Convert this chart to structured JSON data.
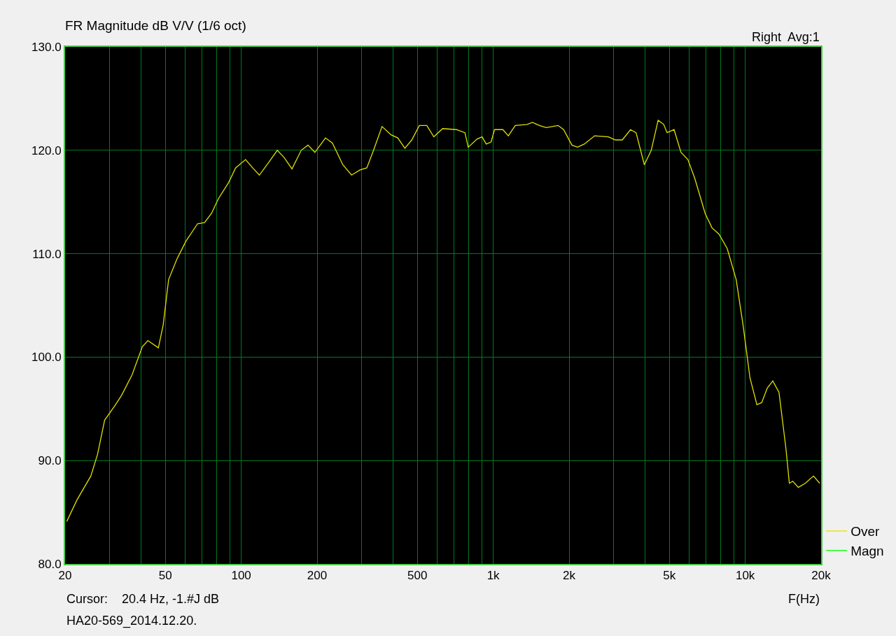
{
  "chart_data": {
    "type": "line",
    "title": "FR Magnitude dB V/V (1/6 oct)",
    "xlabel": "F(Hz)",
    "annotations": [
      "Right  Avg:1",
      "Cursor:    20.4 Hz, -1.#J dB",
      "HA20-569_2014.12.20."
    ],
    "x": [
      20.3,
      22.3,
      25.3,
      26.9,
      28.7,
      31.5,
      33.5,
      36.9,
      40.5,
      42.6,
      46.9,
      49.0,
      51.5,
      55.6,
      60.3,
      67.1,
      71.5,
      76.2,
      81.1,
      89.2,
      95.0,
      104,
      111,
      118,
      130,
      139,
      148,
      159,
      173,
      184,
      196,
      216,
      230,
      253,
      274,
      296,
      315,
      335,
      362,
      393,
      418,
      446,
      475,
      509,
      545,
      581,
      630,
      715,
      772,
      796,
      864,
      903,
      938,
      980,
      1012,
      1092,
      1148,
      1223,
      1361,
      1432,
      1525,
      1624,
      1808,
      1902,
      2052,
      2158,
      2298,
      2526,
      2866,
      3053,
      3251,
      3506,
      3688,
      3978,
      4236,
      4512,
      4746,
      4898,
      5218,
      5558,
      5920,
      6304,
      6931,
      7380,
      7860,
      8482,
      9206,
      9804,
      10442,
      11122,
      11624,
      12226,
      12860,
      13612,
      14498,
      14964,
      15444,
      16240,
      17298,
      18660,
      19748
    ],
    "series": [
      {
        "name": "Over",
        "color": "#e0e000",
        "values": [
          84.1,
          86.2,
          88.5,
          90.6,
          93.9,
          95.3,
          96.3,
          98.3,
          101.0,
          101.6,
          100.9,
          103.1,
          107.5,
          109.5,
          111.2,
          112.9,
          113.0,
          113.9,
          115.3,
          116.9,
          118.3,
          119.1,
          118.3,
          117.6,
          119.0,
          120.0,
          119.3,
          118.2,
          120.0,
          120.5,
          119.8,
          121.2,
          120.7,
          118.6,
          117.6,
          118.1,
          118.3,
          120.0,
          122.3,
          121.5,
          121.2,
          120.2,
          121.0,
          122.4,
          122.4,
          121.3,
          122.1,
          122.0,
          121.7,
          120.3,
          121.1,
          121.3,
          120.6,
          120.8,
          122.0,
          122.0,
          121.4,
          122.4,
          122.5,
          122.7,
          122.4,
          122.2,
          122.4,
          122.0,
          120.5,
          120.3,
          120.6,
          121.4,
          121.3,
          121.0,
          121.0,
          122.0,
          121.7,
          118.6,
          120.0,
          122.9,
          122.5,
          121.7,
          122.0,
          119.8,
          119.1,
          117.3,
          113.9,
          112.5,
          111.9,
          110.5,
          107.5,
          103.1,
          98.0,
          95.4,
          95.6,
          97.0,
          97.7,
          96.6,
          91.2,
          87.8,
          88.0,
          87.4,
          87.8,
          88.5,
          87.8
        ]
      },
      {
        "name": "Magn",
        "color": "#00ff00",
        "values": [
          null,
          null,
          null,
          null,
          null,
          null,
          null,
          null,
          null,
          null,
          null,
          null,
          null,
          null,
          null,
          null,
          null,
          null,
          null,
          null,
          null,
          null,
          null,
          null,
          null,
          null,
          null,
          null,
          null,
          null,
          null,
          null,
          null,
          null,
          null,
          null,
          null,
          null,
          null,
          null,
          null,
          null,
          null,
          null,
          null,
          null,
          null,
          null,
          null,
          null,
          null,
          null,
          null,
          null,
          null,
          null,
          null,
          null,
          null,
          null,
          null,
          null,
          null,
          null,
          null,
          null,
          null,
          null,
          null,
          null,
          null,
          null,
          null,
          null,
          null,
          null,
          null,
          null,
          null,
          null,
          null,
          null,
          null,
          null,
          null,
          null,
          null,
          null,
          null,
          null,
          null,
          null,
          null,
          null,
          null,
          null,
          null,
          null,
          null,
          null,
          null
        ]
      }
    ],
    "log": "x",
    "xlim": [
      20,
      20000
    ],
    "xticks": [
      20,
      {
        "value": 30,
        "label": null
      },
      {
        "value": 40,
        "label": null
      },
      50,
      {
        "value": 60,
        "label": null
      },
      {
        "value": 70,
        "label": null
      },
      {
        "value": 80,
        "label": null
      },
      {
        "value": 90,
        "label": null
      },
      100,
      200,
      {
        "value": 300,
        "label": null
      },
      {
        "value": 400,
        "label": null
      },
      500,
      {
        "value": 600,
        "label": null
      },
      {
        "value": 700,
        "label": null
      },
      {
        "value": 800,
        "label": null
      },
      {
        "value": 900,
        "label": null
      },
      {
        "value": 1000,
        "label": "1k"
      },
      {
        "value": 2000,
        "label": "2k"
      },
      {
        "value": 3000,
        "label": null
      },
      {
        "value": 4000,
        "label": null
      },
      {
        "value": 5000,
        "label": "5k"
      },
      {
        "value": 6000,
        "label": null
      },
      {
        "value": 7000,
        "label": null
      },
      {
        "value": 8000,
        "label": null
      },
      {
        "value": 9000,
        "label": null
      },
      {
        "value": 10000,
        "label": "10k"
      },
      {
        "value": 20000,
        "label": "20k"
      }
    ],
    "ylim": [
      80,
      130
    ],
    "yticks": [
      {
        "value": 80,
        "label": "80.0"
      },
      {
        "value": 90,
        "label": "90.0"
      },
      {
        "value": 100,
        "label": "100.0"
      },
      {
        "value": 110,
        "label": "110.0"
      },
      {
        "value": 120,
        "label": "120.0"
      },
      {
        "value": 130,
        "label": "130.0"
      }
    ],
    "grid": true,
    "legend": "bottom right",
    "marker": "none",
    "line_style": "solid"
  }
}
